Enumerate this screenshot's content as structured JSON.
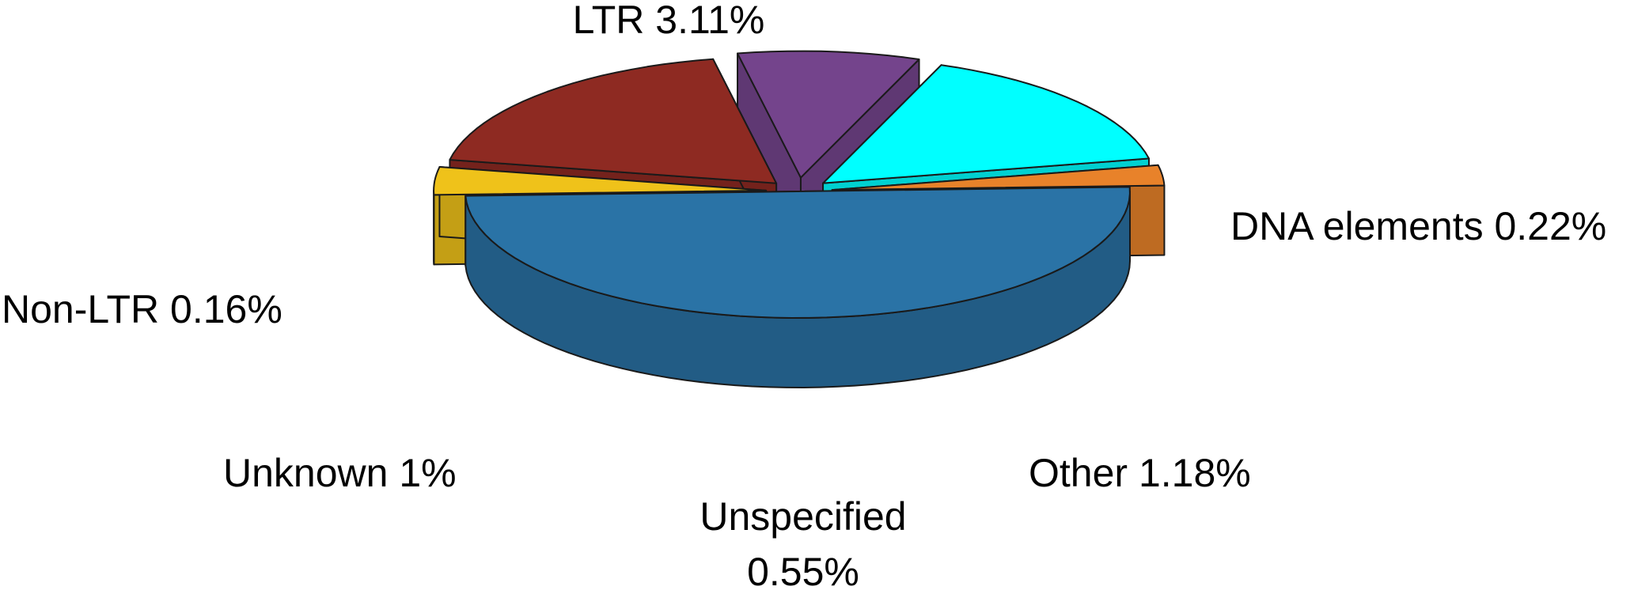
{
  "chart_data": {
    "type": "pie",
    "variant": "3d-exploded",
    "title": "",
    "slices": [
      {
        "key": "ltr",
        "label": "LTR 3.11%",
        "value": 3.11,
        "color": "#2a73a6"
      },
      {
        "key": "dna",
        "label": "DNA elements 0.22%",
        "value": 0.22,
        "color": "#efc21a"
      },
      {
        "key": "other",
        "label": "Other 1.18%",
        "value": 1.18,
        "color": "#8e2a22"
      },
      {
        "key": "unspecified",
        "label_line1": "Unspecified",
        "label_line2": "0.55%",
        "value": 0.55,
        "color": "#74448c"
      },
      {
        "key": "unknown",
        "label": "Unknown 1%",
        "value": 1.0,
        "color": "#00ffff"
      },
      {
        "key": "nonltr",
        "label": "Non-LTR 0.16%",
        "value": 0.16,
        "color": "#e8822a"
      }
    ]
  }
}
